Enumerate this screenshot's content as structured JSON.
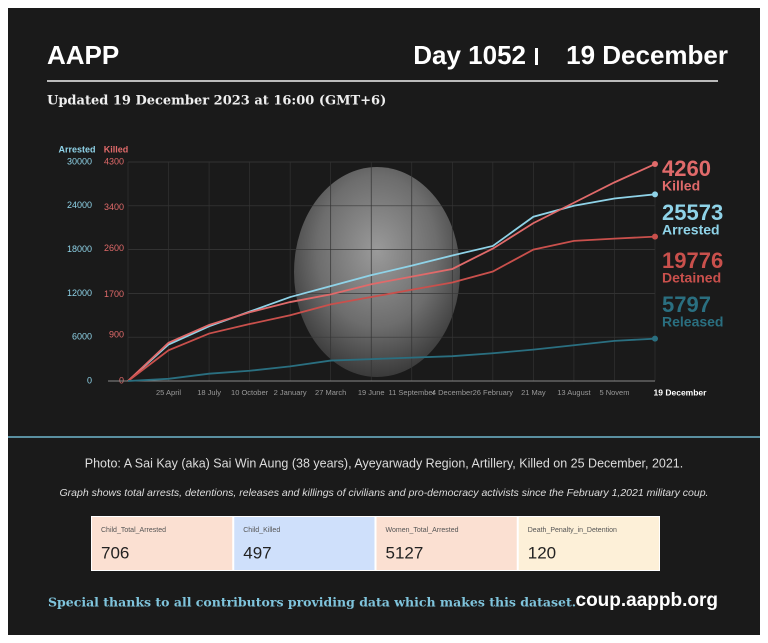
{
  "header": {
    "brand": "AAPP",
    "day": "Day 1052",
    "date": "19 December",
    "updated": "Updated 19 December 2023 at 16:00 (GMT+6)"
  },
  "chart_data": {
    "type": "line",
    "ylabel": "Arrested",
    "y2label": "Killed",
    "categories": [
      null,
      "25 April",
      "18 July",
      "10 October",
      "2 January",
      "27 March",
      "19 June",
      "11 September",
      "4 December",
      "26 February",
      "21 May",
      "13 August",
      "5 Novem",
      "19 December"
    ],
    "ylim": [
      0,
      30000
    ],
    "yticks": [
      0,
      6000,
      12000,
      18000,
      24000,
      30000
    ],
    "y2lim": [
      0,
      4300
    ],
    "y2ticks": [
      0,
      900,
      1700,
      2600,
      3400,
      4300
    ],
    "grid": true,
    "series": [
      {
        "name": "Arrested",
        "color": "#8fd3e8",
        "values": [
          0,
          5000,
          7500,
          9500,
          11500,
          13000,
          14500,
          15800,
          17200,
          18500,
          22500,
          24000,
          25000,
          25573
        ]
      },
      {
        "name": "Killed",
        "color": "#e06a6a",
        "axis": "y2",
        "values": [
          0,
          750,
          1100,
          1350,
          1550,
          1700,
          1900,
          2050,
          2200,
          2600,
          3100,
          3500,
          3900,
          4260
        ]
      },
      {
        "name": "Detained",
        "color": "#c9504c",
        "values": [
          0,
          4200,
          6500,
          7800,
          9000,
          10500,
          11500,
          12500,
          13500,
          15000,
          18000,
          19200,
          19500,
          19776
        ]
      },
      {
        "name": "Released",
        "color": "#2a6f80",
        "values": [
          0,
          300,
          1000,
          1400,
          2000,
          2800,
          3000,
          3200,
          3400,
          3800,
          4300,
          4900,
          5500,
          5797
        ]
      }
    ]
  },
  "caption": "Photo: A Sai Kay (aka) Sai Win Aung (38 years), Ayeyarwady Region, Artillery, Killed on 25 December, 2021.",
  "note": "Graph shows total arrests, detentions, releases and killings of civilians and pro-democracy activists since the February 1,2021 military coup.",
  "stats": [
    {
      "label": "Child_Total_Arrested",
      "value": 706,
      "color": "#fbe0d2"
    },
    {
      "label": "Child_Killed",
      "value": 497,
      "color": "#cfe0fb"
    },
    {
      "label": "Women_Total_Arrested",
      "value": 5127,
      "color": "#fbe0d2"
    },
    {
      "label": "Death_Penalty_in_Detention",
      "value": 120,
      "color": "#fdf0d8"
    }
  ],
  "footer": {
    "thanks": "Special thanks to all contributors providing data which makes this dataset.",
    "site": "coup.aappb.org"
  }
}
